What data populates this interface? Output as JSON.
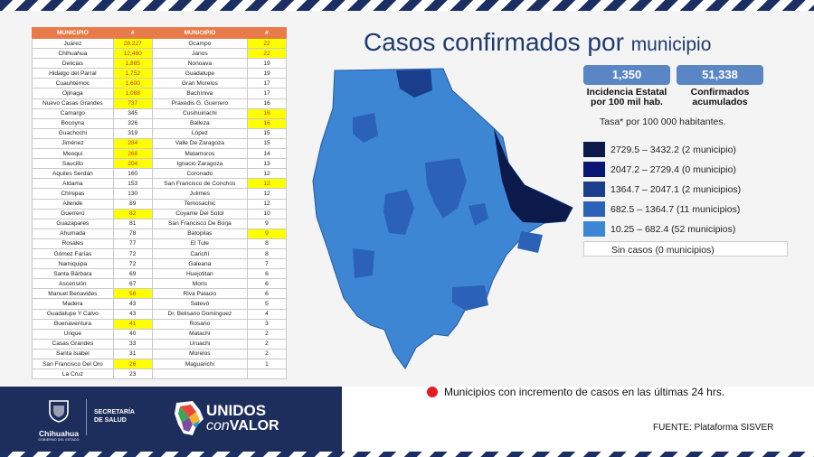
{
  "table": {
    "header": [
      "MUNICIPIO",
      "#",
      "MUNICIPIO",
      "#"
    ],
    "rows": [
      {
        "m1": "Juárez",
        "v1": "28,227",
        "h1": true,
        "m2": "Ocampo",
        "v2": "22",
        "h2": true
      },
      {
        "m1": "Chihuahua",
        "v1": "12,480",
        "h1": true,
        "m2": "Janos",
        "v2": "22",
        "h2": true
      },
      {
        "m1": "Delicias",
        "v1": "1,885",
        "h1": true,
        "m2": "Nonoava",
        "v2": "19",
        "h2": false
      },
      {
        "m1": "Hidalgo del Parral",
        "v1": "1,752",
        "h1": true,
        "m2": "Guadalupe",
        "v2": "19",
        "h2": false
      },
      {
        "m1": "Cuauhtémoc",
        "v1": "1,600",
        "h1": true,
        "m2": "Gran Morelos",
        "v2": "17",
        "h2": false
      },
      {
        "m1": "Ojinaga",
        "v1": "1,088",
        "h1": true,
        "m2": "Bachíniva",
        "v2": "17",
        "h2": false
      },
      {
        "m1": "Nuevo Casas Grandes",
        "v1": "737",
        "h1": true,
        "m2": "Praxedis G. Guerrero",
        "v2": "16",
        "h2": false
      },
      {
        "m1": "Camargo",
        "v1": "345",
        "h1": false,
        "m2": "Cusihuiriachi",
        "v2": "16",
        "h2": true
      },
      {
        "m1": "Bocoyna",
        "v1": "326",
        "h1": false,
        "m2": "Balleza",
        "v2": "16",
        "h2": true
      },
      {
        "m1": "Guachochi",
        "v1": "319",
        "h1": false,
        "m2": "López",
        "v2": "15",
        "h2": false
      },
      {
        "m1": "Jiménez",
        "v1": "284",
        "h1": true,
        "m2": "Valle De Zaragoza",
        "v2": "15",
        "h2": false
      },
      {
        "m1": "Meoqui",
        "v1": "268",
        "h1": true,
        "m2": "Matamoros",
        "v2": "14",
        "h2": false
      },
      {
        "m1": "Saucillo",
        "v1": "204",
        "h1": true,
        "m2": "Ignacio Zaragoza",
        "v2": "13",
        "h2": false
      },
      {
        "m1": "Aquiles Serdán",
        "v1": "160",
        "h1": false,
        "m2": "Coronado",
        "v2": "12",
        "h2": false
      },
      {
        "m1": "Aldama",
        "v1": "153",
        "h1": false,
        "m2": "San Francisco de Conchos",
        "v2": "12",
        "h2": true
      },
      {
        "m1": "Chínipas",
        "v1": "130",
        "h1": false,
        "m2": "Julimes",
        "v2": "12",
        "h2": false
      },
      {
        "m1": "Allende",
        "v1": "89",
        "h1": false,
        "m2": "Temosachic",
        "v2": "12",
        "h2": false
      },
      {
        "m1": "Guerrero",
        "v1": "82",
        "h1": true,
        "m2": "Coyame Del Sotol",
        "v2": "10",
        "h2": false
      },
      {
        "m1": "Guazapares",
        "v1": "81",
        "h1": false,
        "m2": "San Francisco De Borja",
        "v2": "9",
        "h2": false
      },
      {
        "m1": "Ahumada",
        "v1": "78",
        "h1": false,
        "m2": "Batopilas",
        "v2": "9",
        "h2": true
      },
      {
        "m1": "Rosales",
        "v1": "77",
        "h1": false,
        "m2": "El Tule",
        "v2": "8",
        "h2": false
      },
      {
        "m1": "Gómez Farías",
        "v1": "72",
        "h1": false,
        "m2": "Carichí",
        "v2": "8",
        "h2": false
      },
      {
        "m1": "Namiquipa",
        "v1": "72",
        "h1": false,
        "m2": "Galeana",
        "v2": "7",
        "h2": false
      },
      {
        "m1": "Santa Bárbara",
        "v1": "69",
        "h1": false,
        "m2": "Huejotitan",
        "v2": "6",
        "h2": false
      },
      {
        "m1": "Ascensión",
        "v1": "67",
        "h1": false,
        "m2": "Moris",
        "v2": "6",
        "h2": false
      },
      {
        "m1": "Manuel Benavides",
        "v1": "56",
        "h1": true,
        "m2": "Riva Palacio",
        "v2": "6",
        "h2": false
      },
      {
        "m1": "Madera",
        "v1": "43",
        "h1": false,
        "m2": "Satevó",
        "v2": "5",
        "h2": false
      },
      {
        "m1": "Guadalupe Y Calvo",
        "v1": "43",
        "h1": false,
        "m2": "Dr. Belisario Dominguez",
        "v2": "4",
        "h2": false
      },
      {
        "m1": "Buenaventura",
        "v1": "41",
        "h1": true,
        "m2": "Rosario",
        "v2": "3",
        "h2": false
      },
      {
        "m1": "Urique",
        "v1": "40",
        "h1": false,
        "m2": "Matachí",
        "v2": "2",
        "h2": false
      },
      {
        "m1": "Casas Grandes",
        "v1": "33",
        "h1": false,
        "m2": "Uruachi",
        "v2": "2",
        "h2": false
      },
      {
        "m1": "Santa Isabel",
        "v1": "31",
        "h1": false,
        "m2": "Morelos",
        "v2": "2",
        "h2": false
      },
      {
        "m1": "San Francisco Del Oro",
        "v1": "26",
        "h1": true,
        "m2": "Maguarichi",
        "v2": "1",
        "h2": false
      },
      {
        "m1": "La Cruz",
        "v1": "23",
        "h1": false,
        "m2": "",
        "v2": "",
        "h2": false
      }
    ]
  },
  "title": {
    "main": "Casos confirmados por ",
    "small": "municipio"
  },
  "kpi": {
    "incidencia_value": "1,350",
    "incidencia_label": "Incidencia Estatal por 100 mil hab.",
    "confirmados_value": "51,338",
    "confirmados_label": "Confirmados acumulados",
    "tasa_note": "Tasa* por 100 000 habitantes."
  },
  "legend": [
    {
      "label": "2729.5 – 3432.2 (2 municipio)",
      "color": "#0b1a4a"
    },
    {
      "label": "2047.2 – 2729.4 (0 municipio)",
      "color": "#0a1673"
    },
    {
      "label": "1364.7 – 2047.1 (2 municipios)",
      "color": "#1b3e8c"
    },
    {
      "label": "682.5 – 1364.7 (11 municipios)",
      "color": "#2b62b8"
    },
    {
      "label": "10.25 – 682.4 (52 municipios)",
      "color": "#3c86d4"
    },
    {
      "label": "Sin casos (0 municipios)",
      "color": "#ffffff"
    }
  ],
  "footer": {
    "gov_name": "Chihuahua",
    "gov_sub": "GOBIERNO DEL ESTADO",
    "salud_line1": "SECRETARÍA",
    "salud_line2": "DE SALUD",
    "unidos": "UNIDOS",
    "con": "con",
    "valor": "VALOR",
    "note": "Municipios con incremento de casos en las últimas 24 hrs.",
    "fuente": "FUENTE: Plataforma SISVER"
  },
  "colors": {
    "navy": "#1d2d5c",
    "accent": "#e87b4a",
    "highlight": "#ffff00",
    "dot": "#e31b23"
  }
}
